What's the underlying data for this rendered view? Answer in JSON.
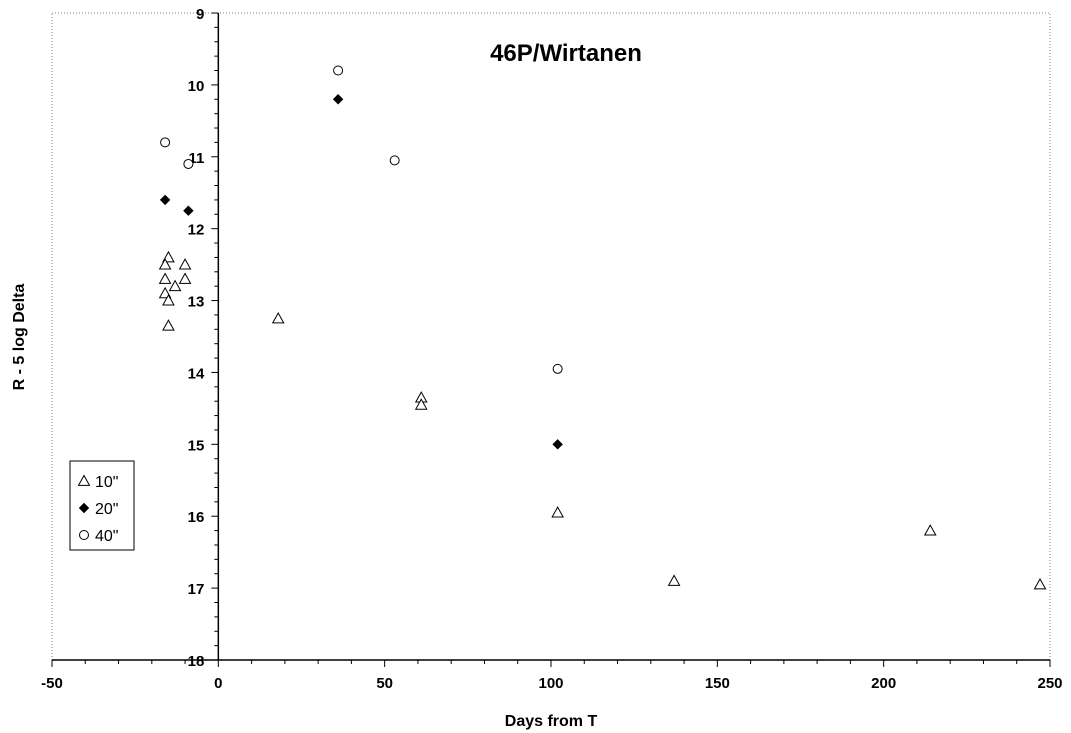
{
  "chart_data": {
    "type": "scatter",
    "title": "46P/Wirtanen",
    "xlabel": "Days from T",
    "ylabel": "R - 5 log Delta",
    "xlim": [
      -50,
      250
    ],
    "ylim": [
      9,
      18
    ],
    "y_inverted": true,
    "x_ticks": [
      -50,
      0,
      50,
      100,
      150,
      200,
      250
    ],
    "y_ticks": [
      9,
      10,
      11,
      12,
      13,
      14,
      15,
      16,
      17,
      18
    ],
    "grid": false,
    "legend_position": "left",
    "series": [
      {
        "name": "10\"",
        "marker": "open-triangle",
        "color": "#000000",
        "points": [
          [
            -15,
            12.4
          ],
          [
            -16,
            12.5
          ],
          [
            -10,
            12.5
          ],
          [
            -16,
            12.7
          ],
          [
            -10,
            12.7
          ],
          [
            -13,
            12.8
          ],
          [
            -16,
            12.9
          ],
          [
            -15,
            13.0
          ],
          [
            -15,
            13.35
          ],
          [
            18,
            13.25
          ],
          [
            61,
            14.35
          ],
          [
            61,
            14.45
          ],
          [
            102,
            15.95
          ],
          [
            137,
            16.9
          ],
          [
            214,
            16.2
          ],
          [
            247,
            16.95
          ]
        ]
      },
      {
        "name": "20\"",
        "marker": "filled-diamond",
        "color": "#000000",
        "points": [
          [
            36,
            10.2
          ],
          [
            -16,
            11.6
          ],
          [
            -9,
            11.75
          ],
          [
            102,
            15.0
          ]
        ]
      },
      {
        "name": "40\"",
        "marker": "open-circle",
        "color": "#000000",
        "points": [
          [
            36,
            9.8
          ],
          [
            -16,
            10.8
          ],
          [
            -9,
            11.1
          ],
          [
            53,
            11.05
          ],
          [
            102,
            13.95
          ]
        ]
      }
    ]
  }
}
